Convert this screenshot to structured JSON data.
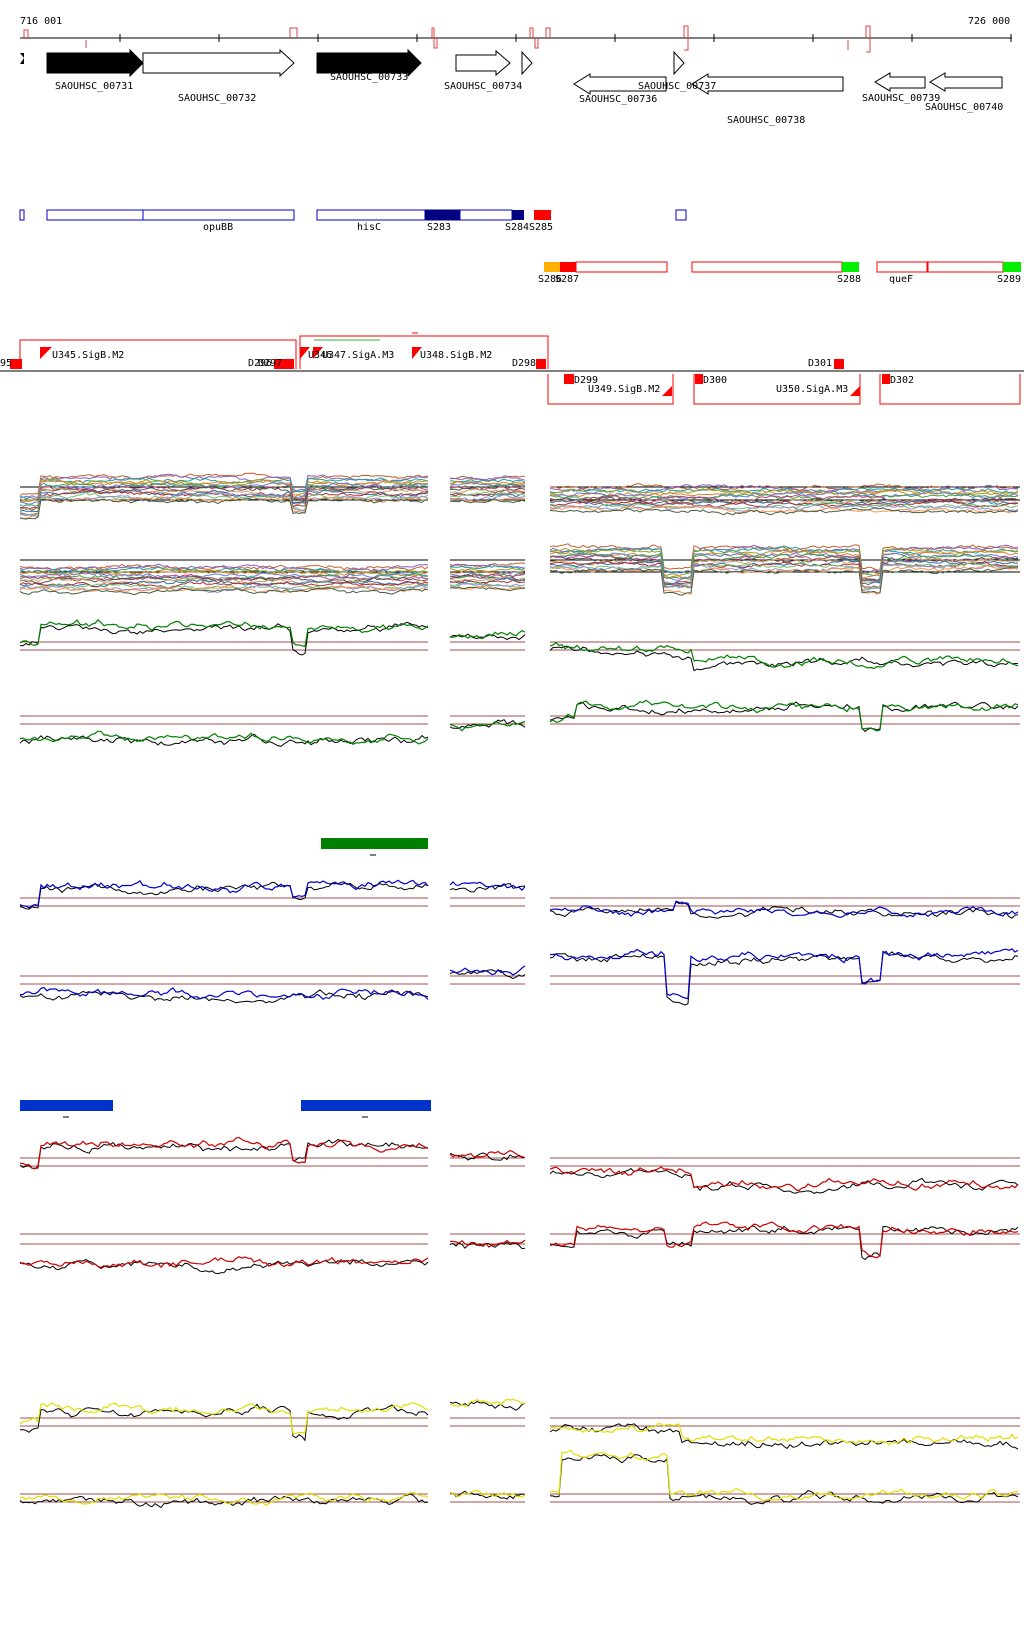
{
  "ruler": {
    "start_label": "716 001",
    "end_label": "726 000"
  },
  "genes": [
    {
      "name": "SAOUHSC_00731",
      "strand": "+",
      "filled": true
    },
    {
      "name": "SAOUHSC_00732",
      "strand": "+",
      "filled": false
    },
    {
      "name": "SAOUHSC_00733",
      "strand": "+",
      "filled": true
    },
    {
      "name": "SAOUHSC_00734",
      "strand": "+",
      "filled": false
    },
    {
      "name": "SAOUHSC_00736",
      "strand": "-",
      "filled": false
    },
    {
      "name": "SAOUHSC_00737",
      "strand": "+",
      "filled": false
    },
    {
      "name": "SAOUHSC_00738",
      "strand": "-",
      "filled": false
    },
    {
      "name": "SAOUHSC_00739",
      "strand": "-",
      "filled": false
    },
    {
      "name": "SAOUHSC_00740",
      "strand": "-",
      "filled": false
    }
  ],
  "operon_labels_plus": [
    "opuBB",
    "hisC",
    "S283",
    "S284",
    "S285"
  ],
  "operon_labels_minus": [
    "S286",
    "S287",
    "S288",
    "queF",
    "S289"
  ],
  "segment_labels_plus": [
    "95",
    "U345.SigB.M2",
    "D296",
    "D297",
    "U346",
    "U347.SigA.M3",
    "U348.SigB.M2",
    "D298"
  ],
  "segment_labels_minus": [
    "D299",
    "U349.SigB.M2",
    "D300",
    "D301",
    "U350.SigA.M3",
    "D302"
  ],
  "colors": {
    "blue_dark": "#000080",
    "red": "#ff0000",
    "green": "#00ee00",
    "orange": "#ffb000",
    "trace_green": "#008000",
    "trace_blue": "#0000cc",
    "trace_red": "#cc0000",
    "trace_yellow": "#e0e000",
    "bar_green": "#008000",
    "bar_blue": "#0033cc",
    "threshold": "#a05050"
  }
}
